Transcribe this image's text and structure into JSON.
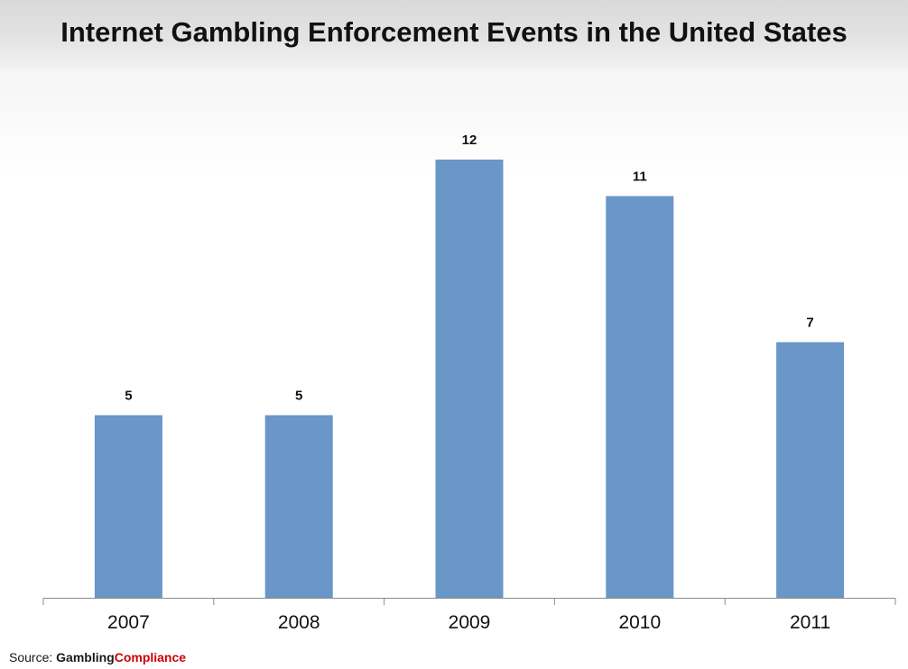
{
  "title": "Internet Gambling Enforcement Events in the United States",
  "source": {
    "prefix": "Source: ",
    "brand_part1": "Gambling",
    "brand_part2": "Compliance"
  },
  "colors": {
    "bar": "#6a96c8",
    "brand_accent": "#cc0000"
  },
  "chart_data": {
    "type": "bar",
    "categories": [
      "2007",
      "2008",
      "2009",
      "2010",
      "2011"
    ],
    "values": [
      5,
      5,
      12,
      11,
      7
    ],
    "data_labels": [
      "5",
      "5",
      "12",
      "11",
      "7"
    ],
    "title": "Internet Gambling Enforcement Events in the United States",
    "xlabel": "",
    "ylabel": "",
    "ylim": [
      0,
      12.4
    ],
    "grid": false,
    "legend": "none"
  }
}
